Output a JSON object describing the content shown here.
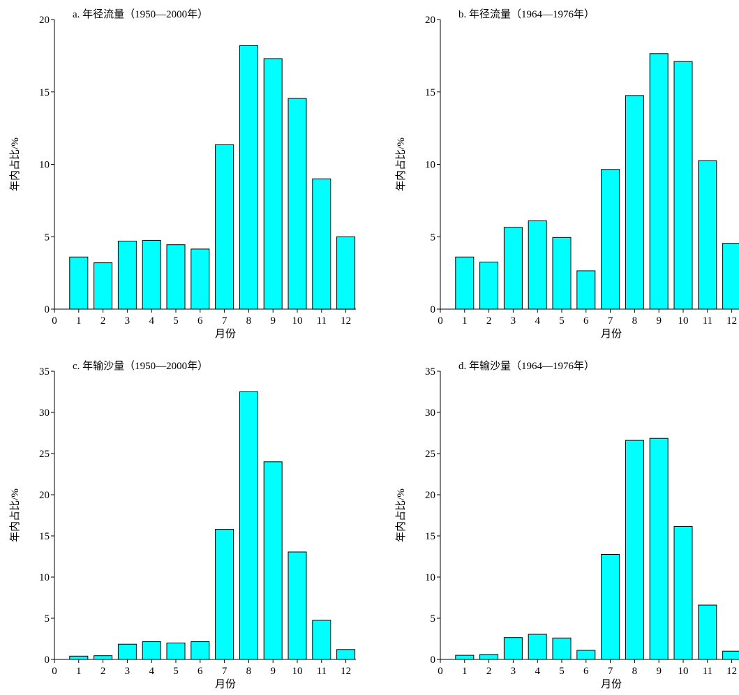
{
  "chart_data": [
    {
      "type": "bar",
      "title": "a. 年径流量（1950—2000年）",
      "xlabel": "月份",
      "ylabel": "年内占比/%",
      "categories": [
        "1",
        "2",
        "3",
        "4",
        "5",
        "6",
        "7",
        "8",
        "9",
        "10",
        "11",
        "12"
      ],
      "values": [
        3.6,
        3.2,
        4.7,
        4.75,
        4.45,
        4.15,
        11.35,
        18.2,
        17.3,
        14.55,
        9.0,
        5.0
      ],
      "ylim": [
        0,
        20
      ],
      "yticks": [
        0,
        5,
        10,
        15,
        20
      ],
      "xlim": [
        0,
        12.5
      ],
      "xticks": [
        0,
        1,
        2,
        3,
        4,
        5,
        6,
        7,
        8,
        9,
        10,
        11,
        12
      ],
      "bar_color": "#00ffff"
    },
    {
      "type": "bar",
      "title": "b. 年径流量（1964—1976年）",
      "xlabel": "月份",
      "ylabel": "年内占比/%",
      "categories": [
        "1",
        "2",
        "3",
        "4",
        "5",
        "6",
        "7",
        "8",
        "9",
        "10",
        "11",
        "12"
      ],
      "values": [
        3.6,
        3.25,
        5.65,
        6.1,
        4.95,
        2.65,
        9.65,
        14.75,
        17.65,
        17.1,
        10.25,
        4.55
      ],
      "ylim": [
        0,
        20
      ],
      "yticks": [
        0,
        5,
        10,
        15,
        20
      ],
      "xlim": [
        0,
        12.5
      ],
      "xticks": [
        0,
        1,
        2,
        3,
        4,
        5,
        6,
        7,
        8,
        9,
        10,
        11,
        12
      ],
      "bar_color": "#00ffff"
    },
    {
      "type": "bar",
      "title": "c. 年输沙量（1950—2000年）",
      "xlabel": "月份",
      "ylabel": "年内占比/%",
      "categories": [
        "1",
        "2",
        "3",
        "4",
        "5",
        "6",
        "7",
        "8",
        "9",
        "10",
        "11",
        "12"
      ],
      "values": [
        0.4,
        0.45,
        1.85,
        2.15,
        2.0,
        2.15,
        15.8,
        32.5,
        24.0,
        13.05,
        4.75,
        1.2
      ],
      "ylim": [
        0,
        35
      ],
      "yticks": [
        0,
        5,
        10,
        15,
        20,
        25,
        30,
        35
      ],
      "xlim": [
        0,
        12.5
      ],
      "xticks": [
        0,
        1,
        2,
        3,
        4,
        5,
        6,
        7,
        8,
        9,
        10,
        11,
        12
      ],
      "bar_color": "#00ffff"
    },
    {
      "type": "bar",
      "title": "d. 年输沙量（1964—1976年）",
      "xlabel": "月份",
      "ylabel": "年内占比/%",
      "categories": [
        "1",
        "2",
        "3",
        "4",
        "5",
        "6",
        "7",
        "8",
        "9",
        "10",
        "11",
        "12"
      ],
      "values": [
        0.5,
        0.6,
        2.65,
        3.05,
        2.6,
        1.1,
        12.75,
        26.6,
        26.85,
        16.15,
        6.6,
        1.0
      ],
      "ylim": [
        0,
        35
      ],
      "yticks": [
        0,
        5,
        10,
        15,
        20,
        25,
        30,
        35
      ],
      "xlim": [
        0,
        12.5
      ],
      "xticks": [
        0,
        1,
        2,
        3,
        4,
        5,
        6,
        7,
        8,
        9,
        10,
        11,
        12
      ],
      "bar_color": "#00ffff"
    }
  ]
}
